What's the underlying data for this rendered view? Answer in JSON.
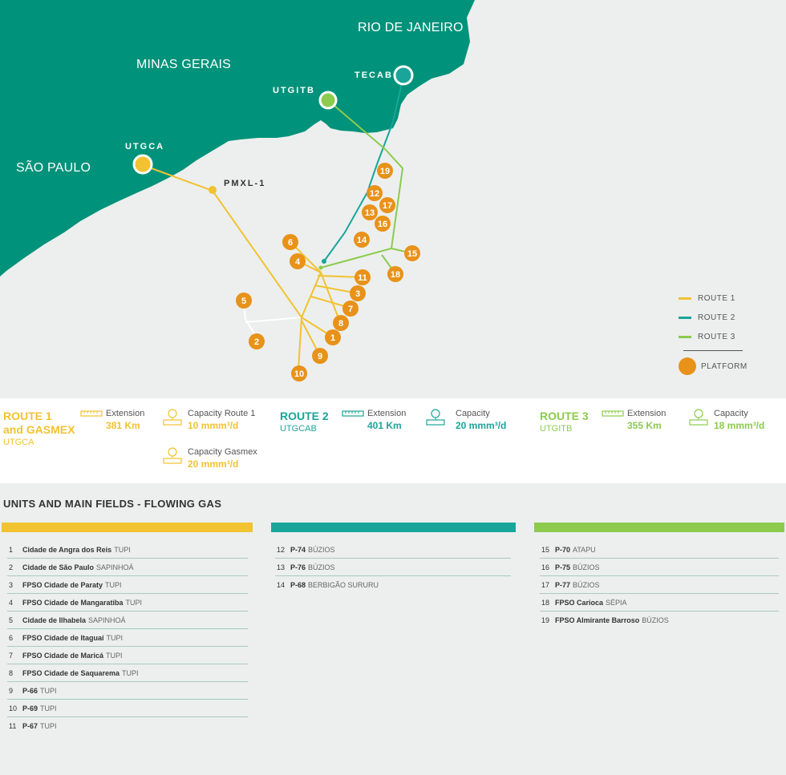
{
  "map": {
    "regions": {
      "rio": "RIO DE JANEIRO",
      "minas": "MINAS GERAIS",
      "saopaulo": "SÃO PAULO"
    },
    "nodes": {
      "tecab": "TECAB",
      "utgitb": "UTGITB",
      "utgca": "UTGCA",
      "pmxl": "PMXL-1"
    },
    "platform_numbers": [
      "1",
      "2",
      "3",
      "4",
      "5",
      "6",
      "7",
      "8",
      "9",
      "10",
      "11",
      "12",
      "13",
      "14",
      "15",
      "16",
      "17",
      "18",
      "19"
    ],
    "colors": {
      "land": "#00927a",
      "sea": "#ecefee",
      "route1": "#f2c230",
      "route2": "#1aa59a",
      "route3": "#8ccb4e",
      "platform": "#e8921a"
    }
  },
  "legend": {
    "route1": "ROUTE 1",
    "route2": "ROUTE 2",
    "route3": "ROUTE 3",
    "platform": "PLATFORM"
  },
  "routes": {
    "r1": {
      "title": "ROUTE 1",
      "title2": "and GASMEX",
      "sub": "UTGCA",
      "extension_label": "Extension",
      "extension_value": "381 Km",
      "capacity_label": "Capacity Route 1",
      "capacity_value": "10 mmm³/d",
      "gasmex_label": "Capacity Gasmex",
      "gasmex_value": "20 mmm³/d"
    },
    "r2": {
      "title": "ROUTE 2",
      "sub": "UTGCAB",
      "extension_label": "Extension",
      "extension_value": "401 Km",
      "capacity_label": "Capacity",
      "capacity_value": "20 mmm³/d"
    },
    "r3": {
      "title": "ROUTE 3",
      "sub": "UTGITB",
      "extension_label": "Extension",
      "extension_value": "355 Km",
      "capacity_label": "Capacity",
      "capacity_value": "18 mmm³/d"
    }
  },
  "fields": {
    "title": "UNITS AND MAIN FIELDS - FLOWING GAS",
    "col1": [
      {
        "n": "1",
        "name": "Cidade de Angra dos Reis",
        "field": "TUPI"
      },
      {
        "n": "2",
        "name": "Cidade de São Paulo",
        "field": "SAPINHOÁ"
      },
      {
        "n": "3",
        "name": "FPSO Cidade de Paraty",
        "field": "TUPI"
      },
      {
        "n": "4",
        "name": "FPSO Cidade de Mangaratiba",
        "field": "TUPI"
      },
      {
        "n": "5",
        "name": "Cidade de Ilhabela",
        "field": "SAPINHOÁ"
      },
      {
        "n": "6",
        "name": "FPSO Cidade de Itaguaí",
        "field": "TUPI"
      },
      {
        "n": "7",
        "name": "FPSO Cidade de Maricá",
        "field": "TUPI"
      },
      {
        "n": "8",
        "name": "FPSO Cidade de Saquarema",
        "field": "TUPI"
      },
      {
        "n": "9",
        "name": "P-66",
        "field": "TUPI"
      },
      {
        "n": "10",
        "name": "P-69",
        "field": "TUPI"
      },
      {
        "n": "11",
        "name": "P-67",
        "field": "TUPI"
      }
    ],
    "col2": [
      {
        "n": "12",
        "name": "P-74",
        "field": "BÚZIOS"
      },
      {
        "n": "13",
        "name": "P-76",
        "field": "BÚZIOS"
      },
      {
        "n": "14",
        "name": "P-68",
        "field": "BERBIGÃO SURURU"
      }
    ],
    "col3": [
      {
        "n": "15",
        "name": "P-70",
        "field": "ATAPU"
      },
      {
        "n": "16",
        "name": "P-75",
        "field": "BÚZIOS"
      },
      {
        "n": "17",
        "name": "P-77",
        "field": "BÚZIOS"
      },
      {
        "n": "18",
        "name": "FPSO Carioca",
        "field": "SÉPIA"
      },
      {
        "n": "19",
        "name": "FPSO Almirante Barroso",
        "field": "BÚZIOS"
      }
    ]
  }
}
